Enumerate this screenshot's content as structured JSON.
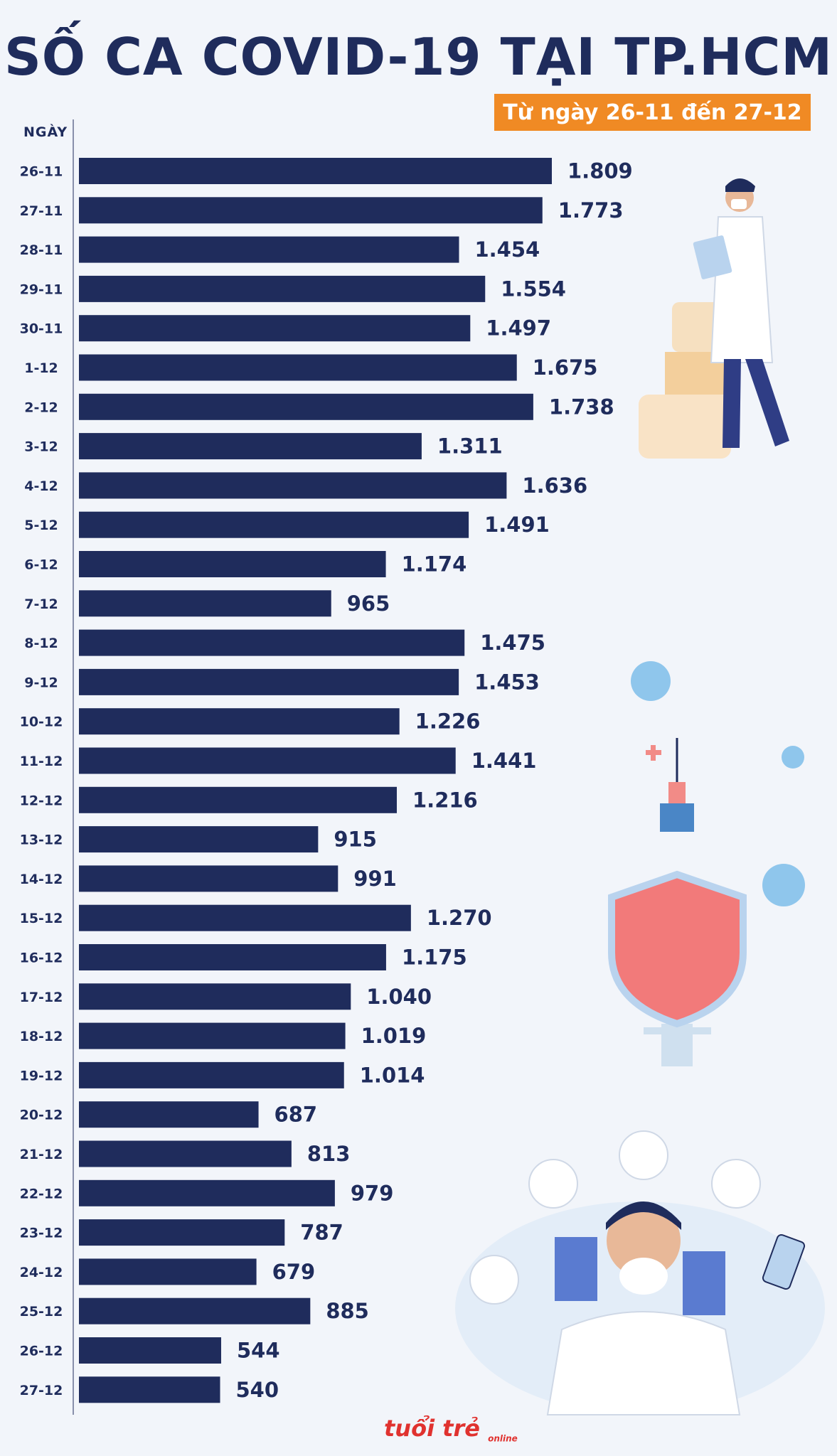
{
  "header": {
    "title": "SỐ CA COVID-19 TẠI TP.HCM",
    "subtitle": "Từ ngày 26-11 đến 27-12"
  },
  "colors": {
    "bar": "#1f2c5c",
    "accent": "#f08a24",
    "text": "#1f2c5c"
  },
  "brand": {
    "logo": "tuổi trẻ",
    "logo_sub": "online"
  },
  "chart_data": {
    "type": "bar",
    "orientation": "horizontal",
    "ylabel": "NGÀY",
    "categories": [
      "26-11",
      "27-11",
      "28-11",
      "29-11",
      "30-11",
      "1-12",
      "2-12",
      "3-12",
      "4-12",
      "5-12",
      "6-12",
      "7-12",
      "8-12",
      "9-12",
      "10-12",
      "11-12",
      "12-12",
      "13-12",
      "14-12",
      "15-12",
      "16-12",
      "17-12",
      "18-12",
      "19-12",
      "20-12",
      "21-12",
      "22-12",
      "23-12",
      "24-12",
      "25-12",
      "26-12",
      "27-12"
    ],
    "values": [
      1809,
      1773,
      1454,
      1554,
      1497,
      1675,
      1738,
      1311,
      1636,
      1491,
      1174,
      965,
      1475,
      1453,
      1226,
      1441,
      1216,
      915,
      991,
      1270,
      1175,
      1040,
      1019,
      1014,
      687,
      813,
      979,
      787,
      679,
      885,
      544,
      540
    ],
    "value_labels": [
      "1.809",
      "1.773",
      "1.454",
      "1.554",
      "1.497",
      "1.675",
      "1.738",
      "1.311",
      "1.636",
      "1.491",
      "1.174",
      "965",
      "1.475",
      "1.453",
      "1.226",
      "1.441",
      "1.216",
      "915",
      "991",
      "1.270",
      "1.175",
      "1.040",
      "1.019",
      "1.014",
      "687",
      "813",
      "979",
      "787",
      "679",
      "885",
      "544",
      "540"
    ],
    "xlim": [
      0,
      1809
    ],
    "grid": false,
    "legend": "none"
  }
}
